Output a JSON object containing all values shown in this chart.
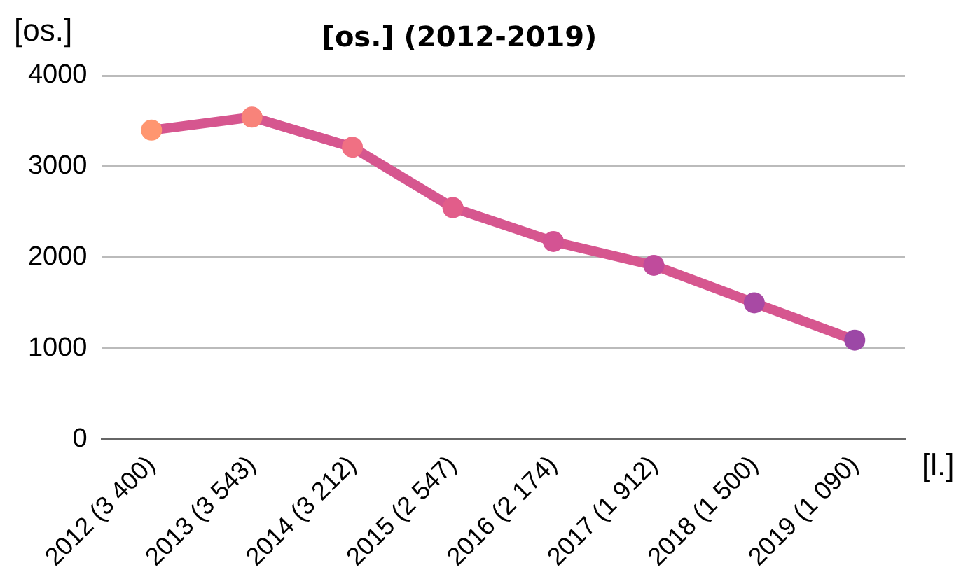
{
  "chart_data": {
    "type": "line",
    "title": "[os.] (2012-2019)",
    "ylabel": "[os.]",
    "xlabel": "[l.]",
    "categories": [
      "2012 (3 400)",
      "2013 (3 543)",
      "2014 (3 212)",
      "2015 (2 547)",
      "2016 (2 174)",
      "2017 (1 912)",
      "2018 (1 500)",
      "2019 (1 090)"
    ],
    "series": [
      {
        "color": "#d6568f",
        "values": [
          3400,
          3543,
          3212,
          2547,
          2174,
          1912,
          1500,
          1090
        ],
        "colors": [
          "#ff9670",
          "#f8837a",
          "#f07083",
          "#e25d8a",
          "#d45393",
          "#c04b9c",
          "#a849a4",
          "#9c48a6"
        ]
      }
    ],
    "ylim": [
      0,
      4000
    ],
    "yticks": [
      0,
      1000,
      2000,
      3000,
      4000
    ],
    "grid": "y",
    "legend": false,
    "marker": "circle",
    "line_style": "solid"
  }
}
